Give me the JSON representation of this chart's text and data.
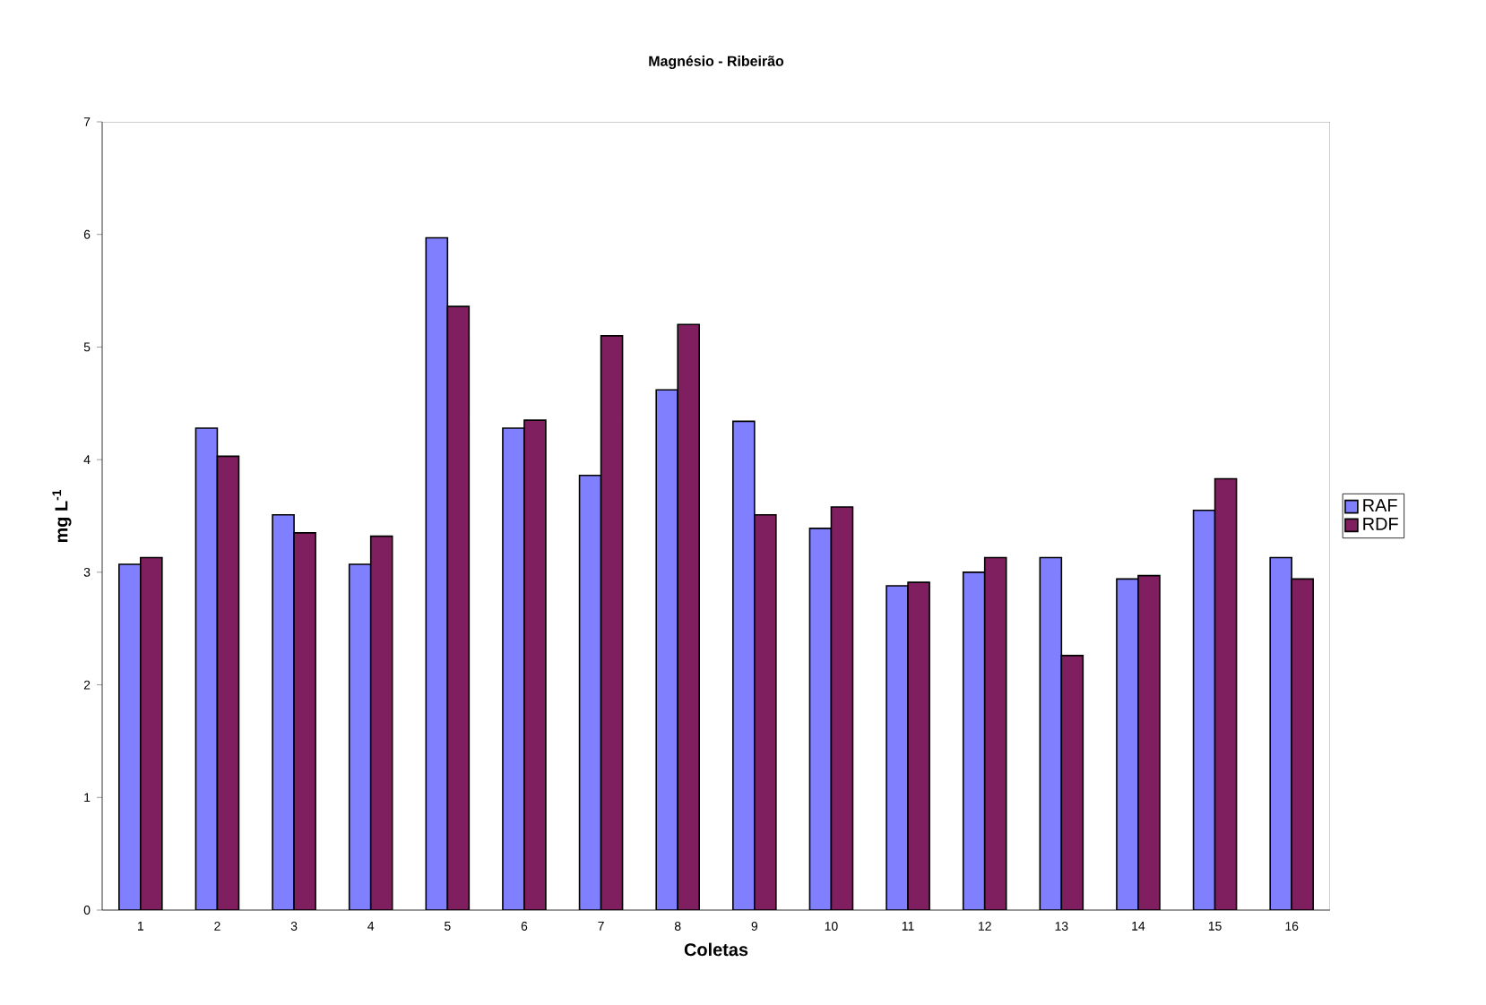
{
  "chart_data": {
    "type": "bar",
    "title": "Magnésio - Ribeirão",
    "xlabel": "Coletas",
    "ylabel": "mg L$^{-1}$",
    "categories": [
      "1",
      "2",
      "3",
      "4",
      "5",
      "6",
      "7",
      "8",
      "9",
      "10",
      "11",
      "12",
      "13",
      "14",
      "15",
      "16"
    ],
    "series": [
      {
        "name": "RAF",
        "color": "#8080ff",
        "values": [
          3.07,
          4.28,
          3.51,
          3.07,
          5.97,
          4.28,
          3.86,
          4.62,
          4.34,
          3.39,
          2.88,
          3.0,
          3.13,
          2.94,
          3.55,
          3.13
        ]
      },
      {
        "name": "RDF",
        "color": "#801f5f",
        "values": [
          3.13,
          4.03,
          3.35,
          3.32,
          5.36,
          4.35,
          5.1,
          5.2,
          3.51,
          3.58,
          2.91,
          3.13,
          2.26,
          2.97,
          3.83,
          2.94
        ]
      }
    ],
    "ylim": [
      0,
      7
    ],
    "yticks": [
      0,
      1,
      2,
      3,
      4,
      5,
      6,
      7
    ],
    "grid": false,
    "legend": "right"
  }
}
